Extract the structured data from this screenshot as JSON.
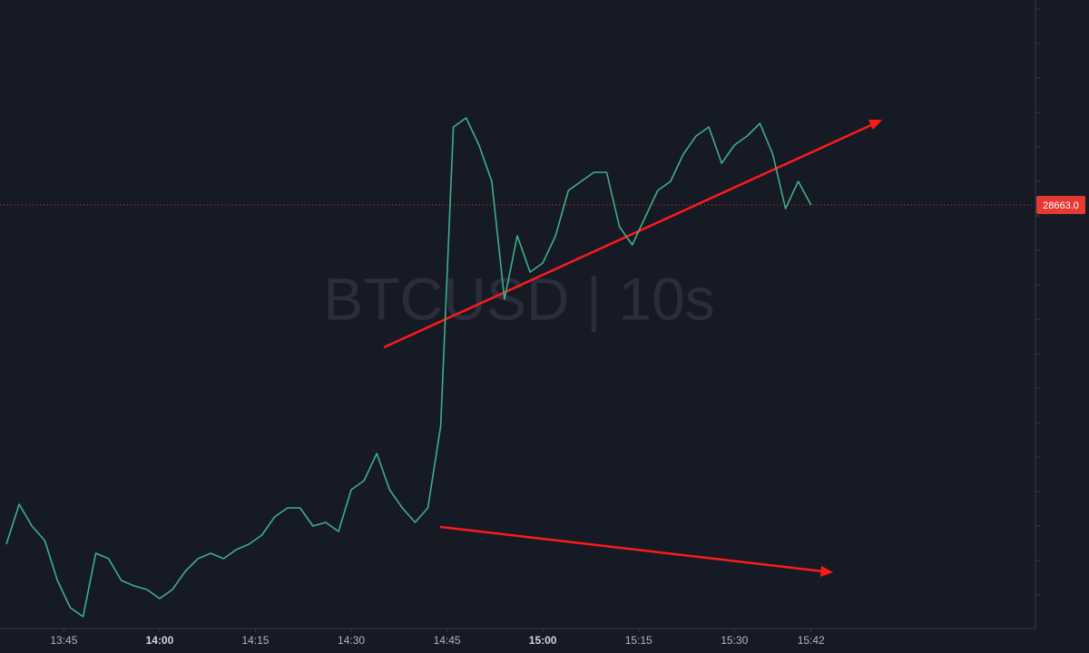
{
  "chart_data": {
    "type": "line",
    "watermark": "BTCUSD  |  10s",
    "x": [
      "13:36",
      "13:38",
      "13:40",
      "13:42",
      "13:44",
      "13:46",
      "13:48",
      "13:50",
      "13:52",
      "13:54",
      "13:56",
      "13:58",
      "14:00",
      "14:02",
      "14:04",
      "14:06",
      "14:08",
      "14:10",
      "14:12",
      "14:14",
      "14:16",
      "14:18",
      "14:20",
      "14:22",
      "14:24",
      "14:26",
      "14:28",
      "14:30",
      "14:32",
      "14:34",
      "14:36",
      "14:38",
      "14:40",
      "14:42",
      "14:44",
      "14:46",
      "14:48",
      "14:50",
      "14:52",
      "14:54",
      "14:56",
      "14:58",
      "15:00",
      "15:02",
      "15:04",
      "15:06",
      "15:08",
      "15:10",
      "15:12",
      "15:14",
      "15:16",
      "15:18",
      "15:20",
      "15:22",
      "15:24",
      "15:26",
      "15:28",
      "15:30",
      "15:32",
      "15:34",
      "15:36",
      "15:38",
      "15:40",
      "15:42"
    ],
    "series": [
      {
        "color": "#3fae8c",
        "values": [
          28476,
          28498,
          28486,
          28478,
          28456,
          28441,
          28436,
          28471,
          28468,
          28456,
          28453,
          28451,
          28446,
          28451,
          28461,
          28468,
          28471,
          28468,
          28473,
          28476,
          28481,
          28491,
          28496,
          28496,
          28486,
          28488,
          28483,
          28506,
          28511,
          28526,
          28506,
          28496,
          28488,
          28496,
          28541,
          28706,
          28711,
          28696,
          28676,
          28611,
          28646,
          28626,
          28631,
          28646,
          28671,
          28676,
          28681,
          28681,
          28651,
          28641,
          28656,
          28671,
          28676,
          28691,
          28701,
          28706,
          28686,
          28696,
          28701,
          28708,
          28691,
          28661,
          28676,
          28663
        ]
      }
    ],
    "xlim": [
      "13:35",
      "16:17"
    ],
    "xticks": [
      "13:45",
      "14:00",
      "14:15",
      "14:30",
      "14:45",
      "15:00",
      "15:15",
      "15:30",
      "15:42"
    ],
    "ylim": [
      28431,
      28776
    ],
    "last_price": {
      "value": 28663,
      "label": "28663.0"
    },
    "last_price_color": "#e53935",
    "grid": false
  }
}
